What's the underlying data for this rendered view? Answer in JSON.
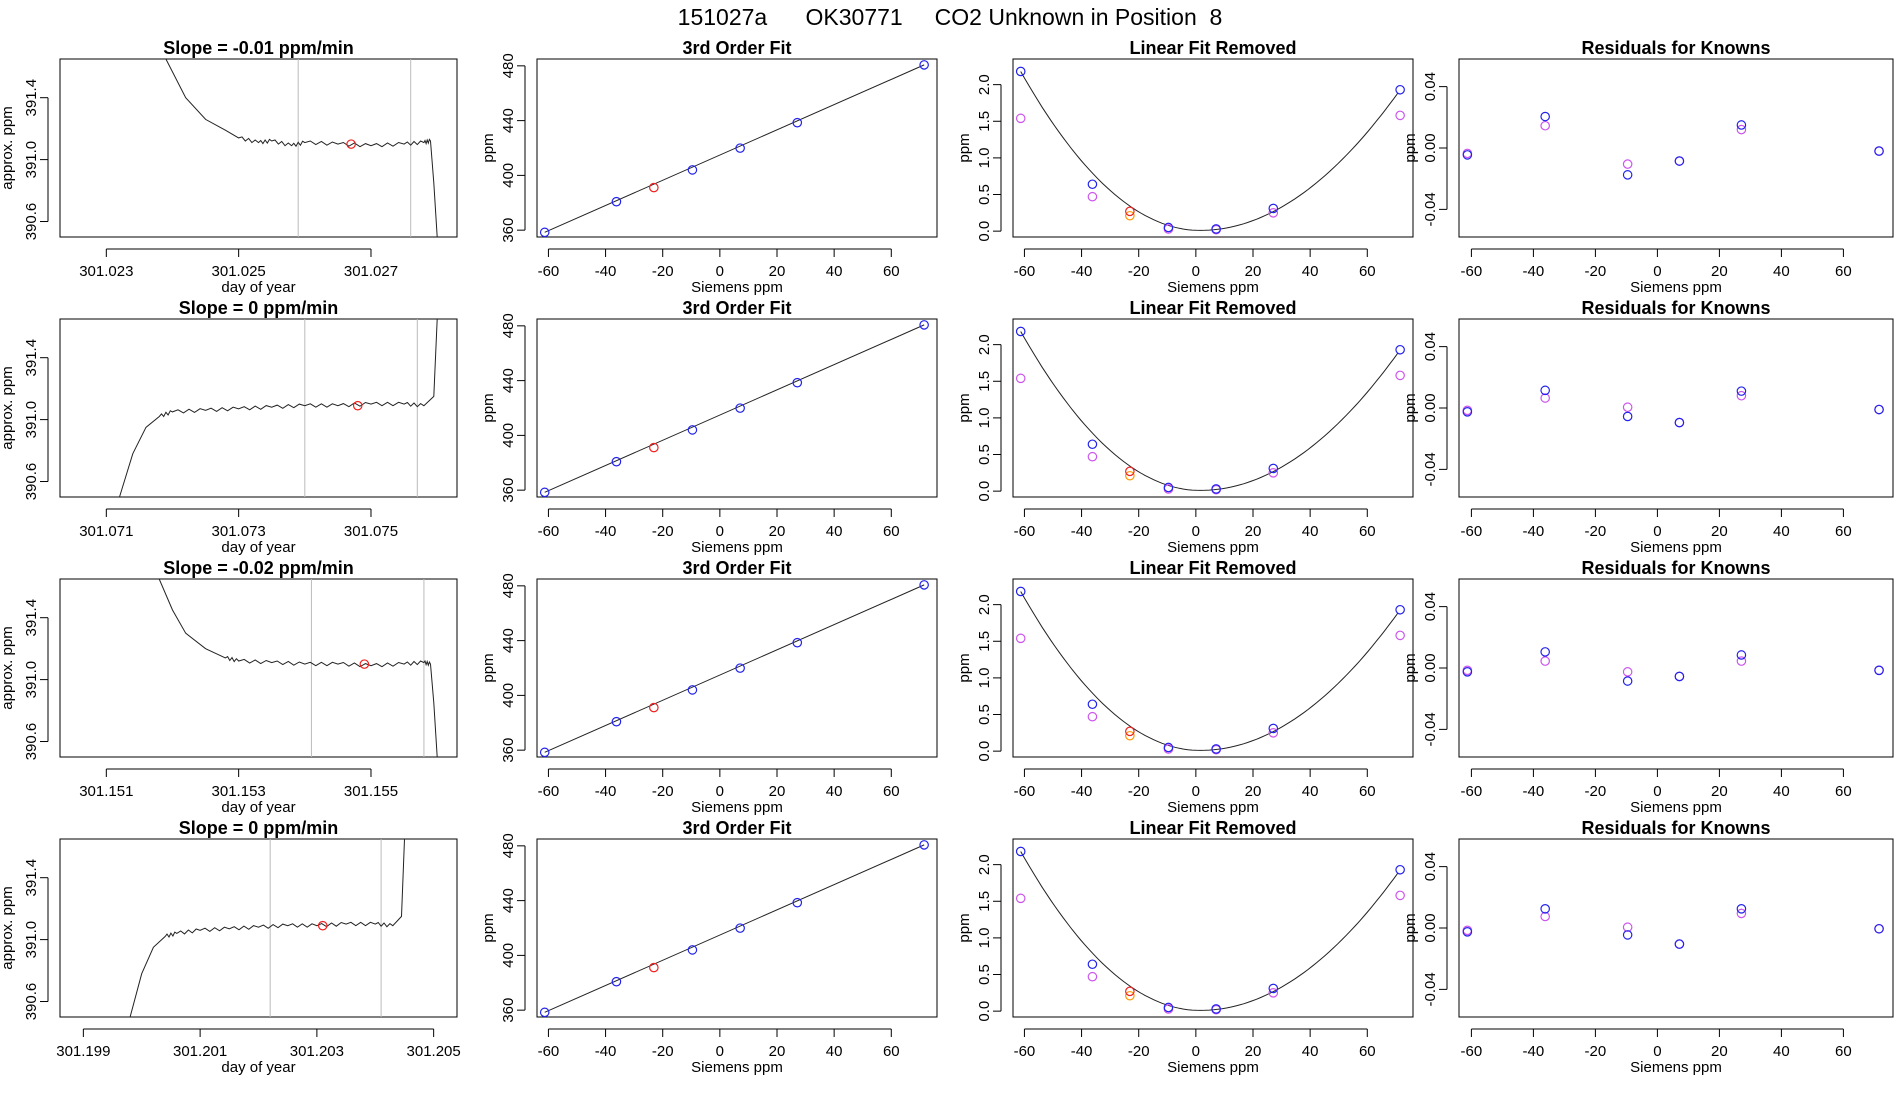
{
  "header": {
    "title": "151027a      OK30771     CO2 Unknown in Position  8"
  },
  "colors": {
    "axis": "#000000",
    "line": "#222222",
    "known_point": "#2222ee",
    "unknown_point": "#ee2222",
    "alt_point": "#cc55ee",
    "alt_unknown_point": "#ff9900",
    "marker_line": "#bbbbbb"
  },
  "chart_data": [
    {
      "type": "line",
      "panel": "drift",
      "row": 0,
      "title": "Slope =  -0.01  ppm/min",
      "xlabel": "day of year",
      "ylabel": "approx. ppm",
      "xlim": [
        301.0223,
        301.0283
      ],
      "ylim": [
        390.5,
        391.65
      ],
      "xticks": [
        301.023,
        301.025,
        301.027
      ],
      "xtick_labels": [
        "301.023",
        "301.025",
        "301.027"
      ],
      "yticks": [
        390.6,
        391.0,
        391.4
      ],
      "ytick_labels": [
        "390.6",
        "391.0",
        "391.4"
      ],
      "vlines": [
        301.0259,
        301.0276
      ],
      "series": [
        {
          "name": "trace",
          "x": [
            301.0239,
            301.0242,
            301.0245,
            301.0248,
            301.025,
            301.0253,
            301.0255,
            301.0258,
            301.026,
            301.0265,
            301.027,
            301.0275,
            301.0278,
            301.0279,
            301.02795,
            301.028
          ],
          "y": [
            391.65,
            391.4,
            391.26,
            391.19,
            391.14,
            391.11,
            391.12,
            391.09,
            391.11,
            391.1,
            391.09,
            391.1,
            391.11,
            391.12,
            390.85,
            390.5
          ]
        }
      ],
      "marker": {
        "x": 301.0267,
        "y": 391.1
      }
    },
    {
      "type": "line",
      "panel": "drift",
      "row": 1,
      "title": "Slope =  0  ppm/min",
      "xlabel": "day of year",
      "ylabel": "approx. ppm",
      "xlim": [
        301.0703,
        301.0763
      ],
      "ylim": [
        390.5,
        391.65
      ],
      "xticks": [
        301.071,
        301.073,
        301.075
      ],
      "xtick_labels": [
        "301.071",
        "301.073",
        "301.075"
      ],
      "yticks": [
        390.6,
        391.0,
        391.4
      ],
      "ytick_labels": [
        "390.6",
        "391.0",
        "391.4"
      ],
      "vlines": [
        301.074,
        301.0757
      ],
      "series": [
        {
          "name": "trace",
          "x": [
            301.0712,
            301.0714,
            301.0716,
            301.0718,
            301.072,
            301.0725,
            301.073,
            301.0735,
            301.074,
            301.0745,
            301.075,
            301.0755,
            301.0758,
            301.07595,
            301.076
          ],
          "y": [
            390.5,
            390.78,
            390.95,
            391.02,
            391.05,
            391.06,
            391.07,
            391.08,
            391.09,
            391.09,
            391.1,
            391.1,
            391.09,
            391.15,
            391.65
          ]
        }
      ],
      "marker": {
        "x": 301.0748,
        "y": 391.09
      }
    },
    {
      "type": "line",
      "panel": "drift",
      "row": 2,
      "title": "Slope =  -0.02  ppm/min",
      "xlabel": "day of year",
      "ylabel": "approx. ppm",
      "xlim": [
        301.1503,
        301.1563
      ],
      "ylim": [
        390.5,
        391.65
      ],
      "xticks": [
        301.151,
        301.153,
        301.155
      ],
      "xtick_labels": [
        "301.151",
        "301.153",
        "301.155"
      ],
      "yticks": [
        390.6,
        391.0,
        391.4
      ],
      "ytick_labels": [
        "390.6",
        "391.0",
        "391.4"
      ],
      "vlines": [
        301.1541,
        301.1558
      ],
      "series": [
        {
          "name": "trace",
          "x": [
            301.1518,
            301.152,
            301.1522,
            301.1525,
            301.1528,
            301.153,
            301.1535,
            301.154,
            301.1545,
            301.155,
            301.1555,
            301.1558,
            301.1559,
            301.15595,
            301.156
          ],
          "y": [
            391.65,
            391.45,
            391.3,
            391.2,
            391.14,
            391.12,
            391.11,
            391.1,
            391.1,
            391.09,
            391.1,
            391.11,
            391.1,
            390.85,
            390.5
          ]
        }
      ],
      "marker": {
        "x": 301.1549,
        "y": 391.1
      }
    },
    {
      "type": "line",
      "panel": "drift",
      "row": 3,
      "title": "Slope =  0  ppm/min",
      "xlabel": "day of year",
      "ylabel": "approx. ppm",
      "xlim": [
        301.1986,
        301.2054
      ],
      "ylim": [
        390.5,
        391.65
      ],
      "xticks": [
        301.199,
        301.201,
        301.203,
        301.205
      ],
      "xtick_labels": [
        "301.199",
        "301.201",
        "301.203",
        "301.205"
      ],
      "yticks": [
        390.6,
        391.0,
        391.4
      ],
      "ytick_labels": [
        "390.6",
        "391.0",
        "391.4"
      ],
      "vlines": [
        301.2022,
        301.2041
      ],
      "series": [
        {
          "name": "trace",
          "x": [
            301.1998,
            301.2,
            301.2002,
            301.2004,
            301.2006,
            301.201,
            301.2015,
            301.202,
            301.2025,
            301.203,
            301.2035,
            301.204,
            301.2043,
            301.20445,
            301.2045
          ],
          "y": [
            390.5,
            390.78,
            390.95,
            391.02,
            391.04,
            391.06,
            391.07,
            391.08,
            391.09,
            391.09,
            391.1,
            391.1,
            391.09,
            391.15,
            391.65
          ]
        }
      ],
      "marker": {
        "x": 301.2031,
        "y": 391.09
      }
    },
    {
      "type": "scatter",
      "panel": "fit",
      "title": "3rd Order Fit",
      "xlabel": "Siemens ppm",
      "ylabel": "ppm",
      "rows": 4,
      "xlim": [
        -64,
        76
      ],
      "ylim": [
        355,
        485
      ],
      "xticks": [
        -60,
        -40,
        -20,
        0,
        20,
        40,
        60
      ],
      "xtick_labels": [
        "-60",
        "-40",
        "-20",
        "0",
        "20",
        "40",
        "60"
      ],
      "yticks": [
        360,
        400,
        440,
        480
      ],
      "ytick_labels": [
        "360",
        "400",
        "440",
        "480"
      ],
      "known": {
        "x": [
          -61.3,
          -36.2,
          -9.6,
          7.1,
          27.1,
          71.5
        ],
        "y": [
          358.4,
          380.8,
          404.0,
          419.9,
          438.5,
          480.7
        ]
      },
      "unknown": {
        "x": [
          -23.1
        ],
        "y": [
          391.1
        ]
      },
      "fit_line": {
        "x": [
          -61.3,
          71.5
        ],
        "y": [
          358.4,
          480.7
        ]
      }
    },
    {
      "type": "scatter",
      "panel": "linear-removed",
      "title": "Linear Fit Removed",
      "xlabel": "Siemens ppm",
      "ylabel": "ppm",
      "rows": 4,
      "xlim": [
        -64,
        76
      ],
      "ylim": [
        -0.08,
        2.35
      ],
      "xticks": [
        -60,
        -40,
        -20,
        0,
        20,
        40,
        60
      ],
      "xtick_labels": [
        "-60",
        "-40",
        "-20",
        "0",
        "20",
        "40",
        "60"
      ],
      "yticks": [
        0.0,
        0.5,
        1.0,
        1.5,
        2.0
      ],
      "ytick_labels": [
        "0.0",
        "0.5",
        "1.0",
        "1.5",
        "2.0"
      ],
      "known": {
        "x": [
          -61.3,
          -36.2,
          -9.6,
          7.1,
          27.1,
          71.5
        ],
        "y": [
          2.18,
          0.64,
          0.05,
          0.03,
          0.31,
          1.93
        ]
      },
      "alt_known": {
        "x": [
          -61.3,
          -36.2,
          -9.6,
          7.1,
          27.1,
          71.5
        ],
        "y": [
          1.54,
          0.47,
          0.03,
          0.02,
          0.25,
          1.58
        ]
      },
      "unknown": {
        "x": [
          -23.1
        ],
        "y": [
          0.27
        ]
      },
      "alt_unknown": {
        "x": [
          -23.1
        ],
        "y": [
          0.21
        ]
      },
      "curve": {
        "min_x": 1.5,
        "min_y": 0.01
      }
    },
    {
      "type": "scatter",
      "panel": "residuals",
      "title": "Residuals for Knowns",
      "xlabel": "Siemens ppm",
      "ylabel": "ppm",
      "rows": 4,
      "xlim": [
        -64,
        76
      ],
      "ylim": [
        -0.058,
        0.058
      ],
      "xticks": [
        -60,
        -40,
        -20,
        0,
        20,
        40,
        60
      ],
      "xtick_labels": [
        "-60",
        "-40",
        "-20",
        "0",
        "20",
        "40",
        "60"
      ],
      "yticks": [
        -0.04,
        0.0,
        0.04
      ],
      "ytick_labels": [
        "-0.04",
        "0.00",
        "0.04"
      ],
      "x": [
        -61.3,
        -36.2,
        -9.6,
        7.1,
        27.1,
        71.5
      ],
      "known_rows": [
        [
          -0.0045,
          0.0205,
          -0.0175,
          -0.0085,
          0.015,
          -0.002
        ],
        [
          -0.0025,
          0.0115,
          -0.0055,
          -0.0095,
          0.011,
          -0.001
        ],
        [
          -0.0025,
          0.0105,
          -0.0085,
          -0.0055,
          0.0085,
          -0.0015
        ],
        [
          -0.0025,
          0.0125,
          -0.0045,
          -0.0105,
          0.0125,
          -0.0005
        ]
      ],
      "alt_rows": [
        [
          -0.0035,
          0.0145,
          -0.0105,
          -0.0085,
          0.012,
          -0.002
        ],
        [
          -0.0015,
          0.0065,
          0.0005,
          -0.0095,
          0.008,
          -0.001
        ],
        [
          -0.0015,
          0.0045,
          -0.0025,
          -0.0055,
          0.0045,
          -0.0015
        ],
        [
          -0.0015,
          0.0075,
          0.0005,
          -0.0105,
          0.0095,
          -0.0005
        ]
      ]
    }
  ]
}
